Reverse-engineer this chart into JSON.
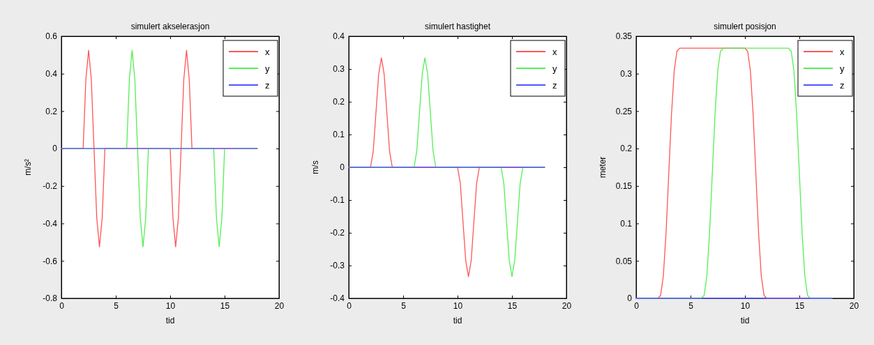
{
  "chart_data": [
    {
      "type": "line",
      "title": "simulert akselerasjon",
      "xlabel": "tid",
      "ylabel": "m/s²",
      "xlim": [
        0,
        20
      ],
      "xticks": [
        0,
        5,
        10,
        15,
        20
      ],
      "ylim": [
        -0.8,
        0.6
      ],
      "yticks": [
        -0.8,
        -0.6,
        -0.4,
        -0.2,
        0,
        0.2,
        0.4,
        0.6
      ],
      "legend": "top right",
      "grid": false,
      "series": [
        {
          "name": "x",
          "color": "#ff5555",
          "x": [
            0,
            2,
            2.25,
            2.5,
            2.75,
            3,
            3.25,
            3.5,
            3.75,
            4,
            10,
            10.25,
            10.5,
            10.75,
            11,
            11.25,
            11.5,
            11.75,
            12,
            18
          ],
          "values": [
            0,
            0,
            0.37,
            0.525,
            0.37,
            0,
            -0.37,
            -0.525,
            -0.37,
            0,
            0,
            -0.37,
            -0.525,
            -0.37,
            0,
            0.37,
            0.525,
            0.37,
            0,
            0
          ]
        },
        {
          "name": "y",
          "color": "#55ee55",
          "x": [
            0,
            6,
            6.25,
            6.5,
            6.75,
            7,
            7.25,
            7.5,
            7.75,
            8,
            14,
            14.25,
            14.5,
            14.75,
            15,
            15.25,
            15.5,
            15.75,
            16,
            18
          ],
          "values": [
            0,
            0,
            0.37,
            0.525,
            0.37,
            0,
            -0.37,
            -0.525,
            -0.37,
            0,
            0,
            -0.37,
            -0.525,
            -0.37,
            0,
            null,
            null,
            null,
            0,
            0
          ]
        },
        {
          "name": "z",
          "color": "#5555ff",
          "x": [
            0,
            18
          ],
          "values": [
            0,
            0
          ]
        }
      ]
    },
    {
      "type": "line",
      "title": "simulert hastighet",
      "xlabel": "tid",
      "ylabel": "m/s",
      "xlim": [
        0,
        20
      ],
      "xticks": [
        0,
        5,
        10,
        15,
        20
      ],
      "ylim": [
        -0.4,
        0.4
      ],
      "yticks": [
        -0.4,
        -0.3,
        -0.2,
        -0.1,
        0,
        0.1,
        0.2,
        0.3,
        0.4
      ],
      "legend": "top right",
      "grid": false,
      "series": [
        {
          "name": "x",
          "color": "#ff5555",
          "x": [
            0,
            2,
            2.25,
            2.5,
            2.75,
            3,
            3.25,
            3.5,
            3.75,
            4,
            10,
            10.25,
            10.5,
            10.75,
            11,
            11.25,
            11.5,
            11.75,
            12,
            18
          ],
          "values": [
            0,
            0,
            0.049,
            0.167,
            0.285,
            0.334,
            0.285,
            0.167,
            0.049,
            0,
            0,
            -0.049,
            -0.167,
            -0.285,
            -0.334,
            -0.285,
            -0.167,
            -0.049,
            0,
            0
          ]
        },
        {
          "name": "y",
          "color": "#55ee55",
          "x": [
            0,
            6,
            6.25,
            6.5,
            6.75,
            7,
            7.25,
            7.5,
            7.75,
            8,
            14,
            14.25,
            14.5,
            14.75,
            15,
            15.25,
            15.5,
            15.75,
            16,
            18
          ],
          "values": [
            0,
            0,
            0.049,
            0.167,
            0.285,
            0.334,
            0.285,
            0.167,
            0.049,
            0,
            0,
            -0.049,
            -0.167,
            -0.285,
            -0.334,
            -0.285,
            -0.167,
            -0.049,
            0,
            0
          ]
        },
        {
          "name": "z",
          "color": "#5555ff",
          "x": [
            0,
            18
          ],
          "values": [
            0,
            0
          ]
        }
      ]
    },
    {
      "type": "line",
      "title": "simulert posisjon",
      "xlabel": "tid",
      "ylabel": "meter",
      "xlim": [
        0,
        20
      ],
      "xticks": [
        0,
        5,
        10,
        15,
        20
      ],
      "ylim": [
        0,
        0.35
      ],
      "yticks": [
        0,
        0.05,
        0.1,
        0.15,
        0.2,
        0.25,
        0.3,
        0.35
      ],
      "legend": "top right",
      "grid": false,
      "series": [
        {
          "name": "x",
          "color": "#ff5555",
          "x": [
            0,
            2,
            2.25,
            2.5,
            2.75,
            3,
            3.25,
            3.5,
            3.75,
            4,
            10,
            10.25,
            10.5,
            10.75,
            11,
            11.25,
            11.5,
            11.75,
            12,
            18
          ],
          "values": [
            0,
            0,
            0.004,
            0.03,
            0.088,
            0.167,
            0.246,
            0.304,
            0.33,
            0.334,
            0.334,
            0.33,
            0.304,
            0.246,
            0.167,
            0.088,
            0.03,
            0.004,
            0,
            0
          ]
        },
        {
          "name": "y",
          "color": "#55ee55",
          "x": [
            0,
            6,
            6.25,
            6.5,
            6.75,
            7,
            7.25,
            7.5,
            7.75,
            8,
            14,
            14.25,
            14.5,
            14.75,
            15,
            15.25,
            15.5,
            15.75,
            16,
            18
          ],
          "values": [
            0,
            0,
            0.004,
            0.03,
            0.088,
            0.167,
            0.246,
            0.304,
            0.33,
            0.334,
            0.334,
            0.33,
            0.304,
            0.246,
            0.167,
            0.088,
            0.03,
            0.004,
            0,
            0
          ]
        },
        {
          "name": "z",
          "color": "#5555ff",
          "x": [
            0,
            18
          ],
          "values": [
            0,
            0
          ]
        }
      ]
    }
  ]
}
